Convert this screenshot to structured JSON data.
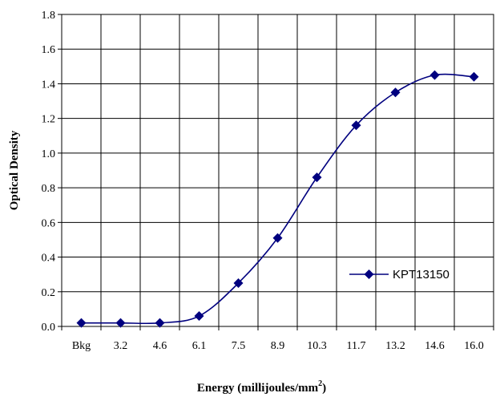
{
  "chart_data": {
    "type": "line",
    "title": "",
    "xlabel": "Energy (millijoules/mm",
    "xlabel_superscript": "2",
    "xlabel_suffix": ")",
    "ylabel": "Optical Density",
    "categories": [
      "Bkg",
      "3.2",
      "4.6",
      "6.1",
      "7.5",
      "8.9",
      "10.3",
      "11.7",
      "13.2",
      "14.6",
      "16.0"
    ],
    "series": [
      {
        "name": "KPT13150",
        "values": [
          0.02,
          0.02,
          0.02,
          0.06,
          0.25,
          0.51,
          0.86,
          1.16,
          1.35,
          1.45,
          1.44
        ],
        "color": "#00007f",
        "marker": "diamond",
        "smooth": true
      }
    ],
    "ylim": [
      0,
      1.8
    ],
    "yticks": [
      "0.0",
      "0.2",
      "0.4",
      "0.6",
      "0.8",
      "1.0",
      "1.2",
      "1.4",
      "1.6",
      "1.8"
    ],
    "grid": true,
    "legend_position": "bottom-right"
  }
}
